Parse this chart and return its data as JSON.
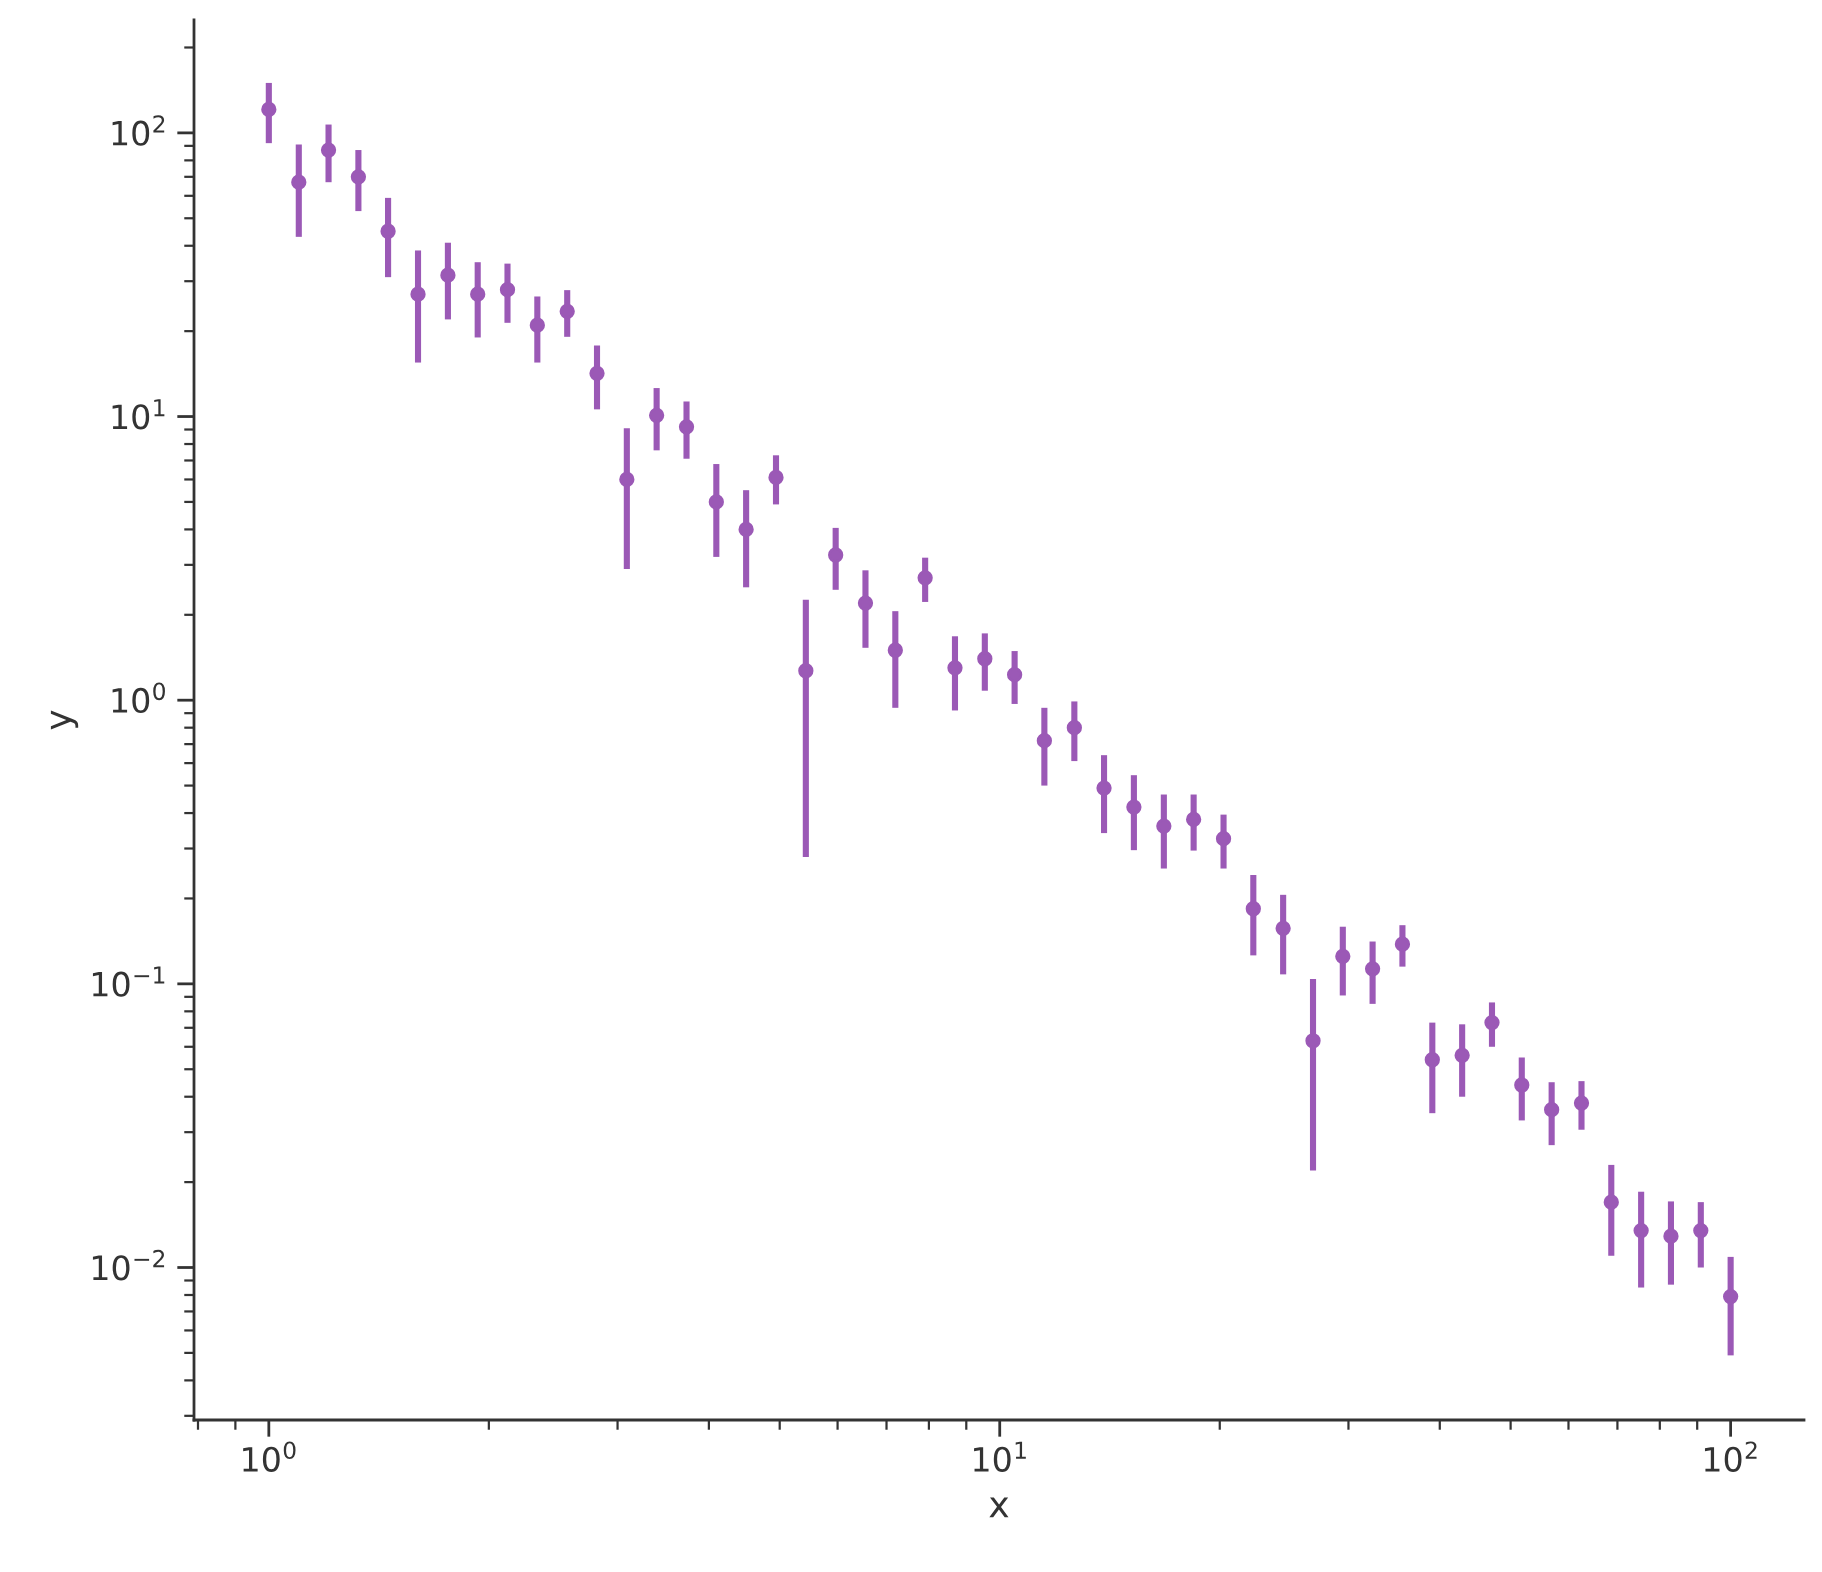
{
  "chart_data": {
    "type": "scatter",
    "xlabel": "x",
    "ylabel": "y",
    "log": "xy",
    "marker": "circle",
    "x": [
      1,
      1.099,
      1.207,
      1.326,
      1.456,
      1.6,
      1.758,
      1.931,
      2.121,
      2.33,
      2.56,
      2.812,
      3.089,
      3.393,
      3.728,
      4.095,
      4.498,
      4.942,
      5.429,
      5.964,
      6.551,
      7.197,
      7.906,
      8.685,
      9.541,
      10.48,
      11.51,
      12.65,
      13.89,
      15.26,
      16.77,
      18.42,
      20.24,
      22.23,
      24.42,
      26.83,
      29.47,
      32.37,
      35.56,
      39.07,
      42.92,
      47.15,
      51.79,
      56.9,
      62.51,
      68.66,
      75.43,
      82.86,
      91.03,
      100
    ],
    "series": [
      {
        "color": "#9b59b6",
        "values": [
          121,
          67,
          87,
          70,
          45,
          27,
          31.5,
          27,
          28,
          21,
          23.5,
          14.2,
          6.0,
          10.1,
          9.2,
          5.0,
          4.0,
          6.1,
          1.27,
          3.25,
          2.2,
          1.5,
          2.7,
          1.3,
          1.4,
          1.23,
          0.72,
          0.8,
          0.49,
          0.42,
          0.36,
          0.38,
          0.325,
          0.184,
          0.157,
          0.063,
          0.125,
          0.113,
          0.138,
          0.054,
          0.056,
          0.073,
          0.044,
          0.036,
          0.038,
          0.017,
          0.0135,
          0.0129,
          0.0135,
          0.0079
        ],
        "errors": [
          29,
          24,
          20,
          17,
          14,
          11.5,
          9.5,
          8,
          6.6,
          5.5,
          4.4,
          3.6,
          3.1,
          2.5,
          2.1,
          1.8,
          1.5,
          1.2,
          0.99,
          0.8,
          0.67,
          0.56,
          0.48,
          0.38,
          0.32,
          0.26,
          0.22,
          0.19,
          0.15,
          0.124,
          0.105,
          0.085,
          0.07,
          0.058,
          0.049,
          0.041,
          0.034,
          0.028,
          0.023,
          0.019,
          0.016,
          0.013,
          0.011,
          0.009,
          0.0074,
          0.006,
          0.005,
          0.0042,
          0.0035,
          0.003
        ]
      }
    ],
    "xlim": [
      0.79,
      126
    ],
    "ylim": [
      0.0029,
      250
    ],
    "xticks": [
      {
        "value": 1,
        "label": "10$^{0}$"
      },
      {
        "value": 10,
        "label": "10$^{1}$"
      },
      {
        "value": 100,
        "label": "10$^{2}$"
      }
    ],
    "yticks": [
      {
        "value": 0.01,
        "label": "10$^{−2}$"
      },
      {
        "value": 0.1,
        "label": "10$^{−1}$"
      },
      {
        "value": 1,
        "label": "10$^{0}$"
      },
      {
        "value": 10,
        "label": "10$^{1}$"
      },
      {
        "value": 100,
        "label": "10$^{2}$"
      }
    ]
  }
}
